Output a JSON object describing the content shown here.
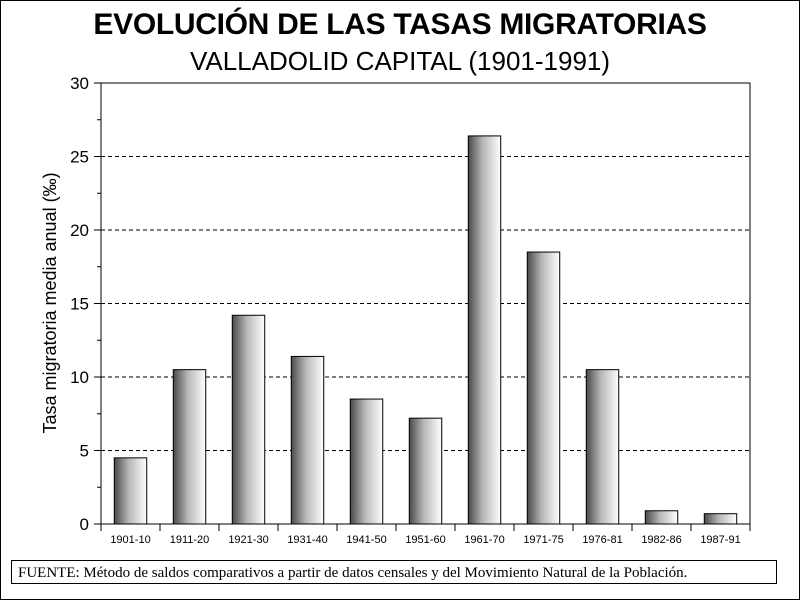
{
  "chart_data": {
    "type": "bar",
    "title": "EVOLUCIÓN DE LAS TASAS MIGRATORIAS",
    "subtitle": "VALLADOLID CAPITAL (1901-1991)",
    "xlabel": "",
    "ylabel": "Tasa migratoria media anual (‰)",
    "ylim": [
      0,
      30
    ],
    "yticks": [
      "0",
      "5",
      "10",
      "15",
      "20",
      "25",
      "30"
    ],
    "grid": true,
    "categories": [
      "1901-10",
      "1911-20",
      "1921-30",
      "1931-40",
      "1941-50",
      "1951-60",
      "1961-70",
      "1971-75",
      "1976-81",
      "1982-86",
      "1987-91"
    ],
    "values": [
      4.5,
      10.5,
      14.2,
      11.4,
      8.5,
      7.2,
      26.4,
      18.5,
      10.5,
      0.9,
      0.7
    ]
  },
  "source_note": "FUENTE: Método de saldos comparativos a partir de datos censales  y del Movimiento Natural de la Población."
}
